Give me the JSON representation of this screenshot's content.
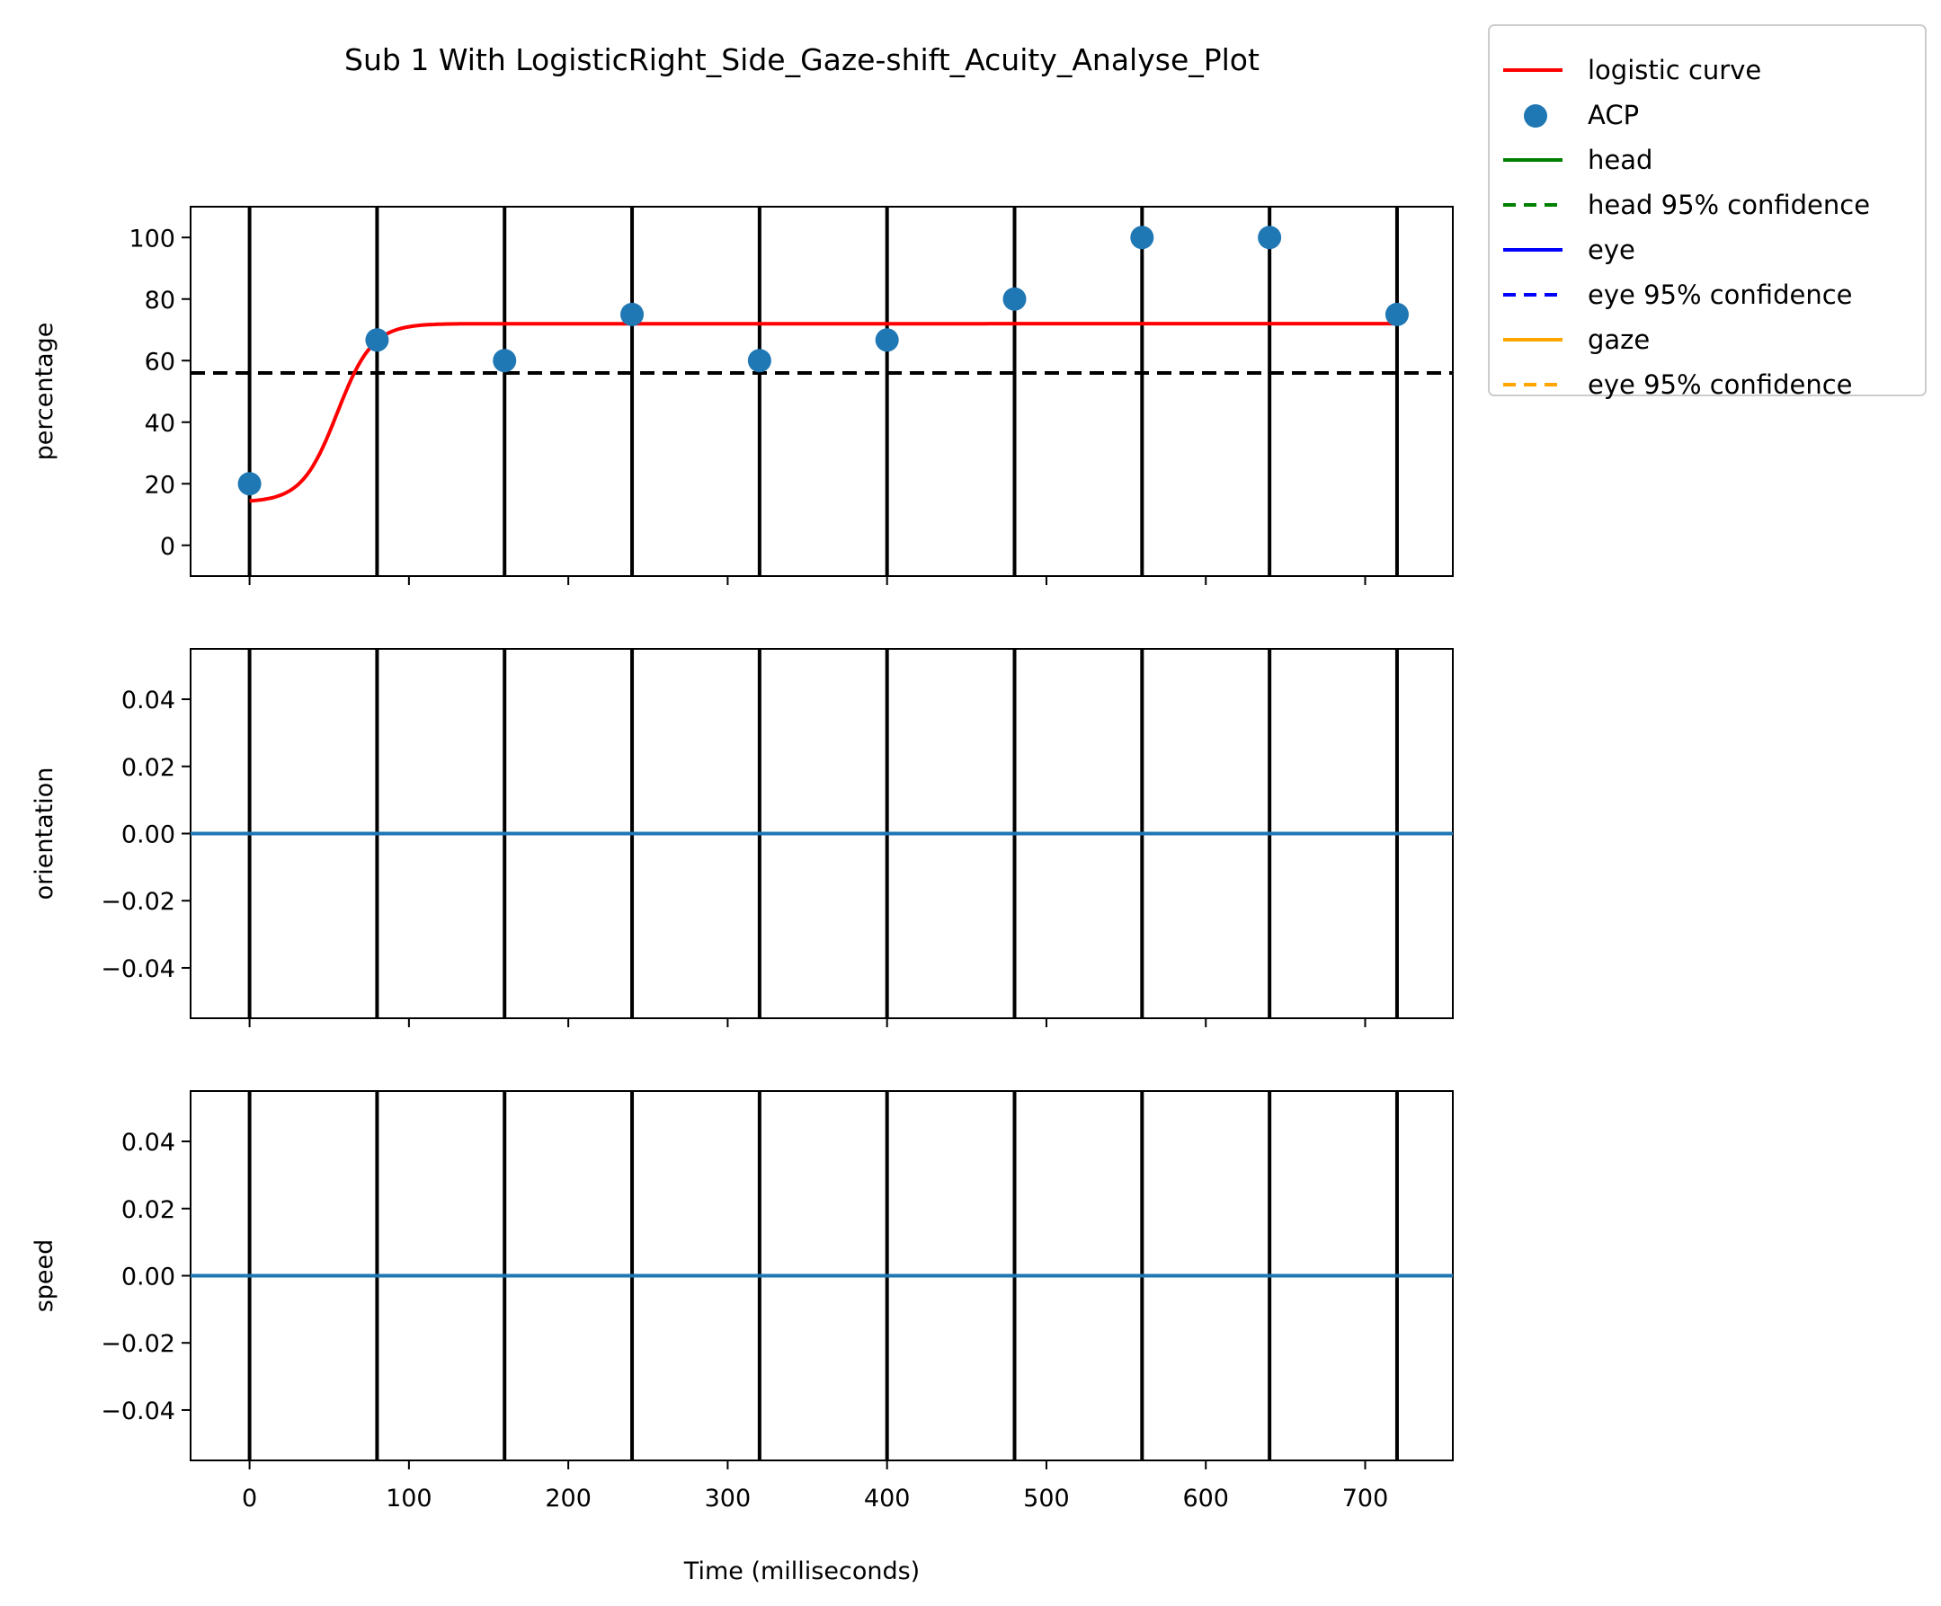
{
  "chart_data": {
    "type": "line",
    "title": "Sub 1 With LogisticRight_Side_Gaze-shift_Acuity_Analyse_Plot",
    "xlabel": "Time (milliseconds)",
    "xlim": [
      -37,
      755
    ],
    "x_ticks": [
      0,
      100,
      200,
      300,
      400,
      500,
      600,
      700
    ],
    "x_tick_labels": [
      "0",
      "100",
      "200",
      "300",
      "400",
      "500",
      "600",
      "700"
    ],
    "event_lines_x": [
      0,
      80,
      160,
      240,
      320,
      400,
      480,
      560,
      640,
      720
    ],
    "colors": {
      "logistic": "#ff0000",
      "acp": "#1f77b4",
      "threshold": "#000000",
      "event_line": "#000000",
      "flat_line": "#1f77b4",
      "head": "#008000",
      "eye": "#0000ff",
      "gaze": "#ffa500"
    },
    "panels": [
      {
        "id": "percentage",
        "ylabel": "percentage",
        "ylim": [
          -10,
          110
        ],
        "y_ticks": [
          0,
          20,
          40,
          60,
          80,
          100
        ],
        "y_tick_labels": [
          "0",
          "20",
          "40",
          "60",
          "80",
          "100"
        ],
        "acp_points": {
          "x": [
            0,
            80,
            160,
            240,
            320,
            400,
            480,
            560,
            640,
            720
          ],
          "y": [
            20,
            66.7,
            60,
            75,
            60,
            66.7,
            80,
            100,
            100,
            75
          ]
        },
        "logistic_curve": {
          "L": 58,
          "k": 0.09,
          "x0": 55,
          "base": 14,
          "x_start": 0,
          "x_end": 720
        },
        "threshold_y": 56
      },
      {
        "id": "orientation",
        "ylabel": "orientation",
        "ylim": [
          -0.055,
          0.055
        ],
        "y_ticks": [
          -0.04,
          -0.02,
          0.0,
          0.02,
          0.04
        ],
        "y_tick_labels": [
          "−0.04",
          "−0.02",
          "0.00",
          "0.02",
          "0.04"
        ],
        "flat_line_y": 0
      },
      {
        "id": "speed",
        "ylabel": "speed",
        "ylim": [
          -0.055,
          0.055
        ],
        "y_ticks": [
          -0.04,
          -0.02,
          0.0,
          0.02,
          0.04
        ],
        "y_tick_labels": [
          "−0.04",
          "−0.02",
          "0.00",
          "0.02",
          "0.04"
        ],
        "flat_line_y": 0
      }
    ],
    "legend": {
      "placement": "outside-top-right",
      "entries": [
        {
          "label": "logistic curve",
          "kind": "line",
          "color": "#ff0000",
          "dash": "solid"
        },
        {
          "label": "ACP",
          "kind": "marker",
          "color": "#1f77b4",
          "dash": "none"
        },
        {
          "label": "head",
          "kind": "line",
          "color": "#008000",
          "dash": "solid"
        },
        {
          "label": "head 95% confidence",
          "kind": "line",
          "color": "#008000",
          "dash": "dashed"
        },
        {
          "label": "eye",
          "kind": "line",
          "color": "#0000ff",
          "dash": "solid"
        },
        {
          "label": "eye 95% confidence",
          "kind": "line",
          "color": "#0000ff",
          "dash": "dashed"
        },
        {
          "label": "gaze",
          "kind": "line",
          "color": "#ffa500",
          "dash": "solid"
        },
        {
          "label": "eye 95% confidence",
          "kind": "line",
          "color": "#ffa500",
          "dash": "dashed"
        }
      ]
    }
  }
}
